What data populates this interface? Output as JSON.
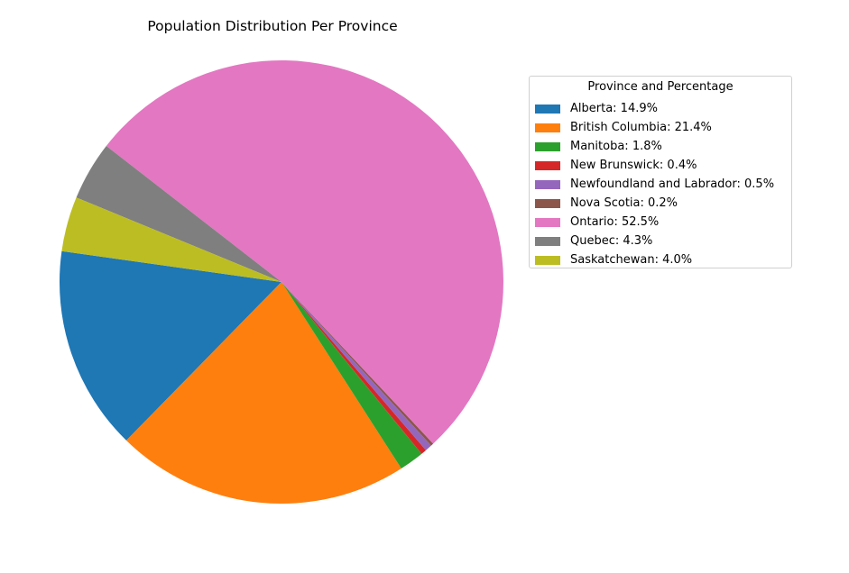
{
  "chart_data": {
    "type": "pie",
    "title": "Population Distribution Per Province",
    "legend_title": "Province and Percentage",
    "legend_placement": "right",
    "start_angle_deg": 172,
    "direction": "counterclockwise",
    "slices": [
      {
        "name": "Alberta",
        "value": 14.9,
        "label": "Alberta: 14.9%",
        "color": "#1f77b4"
      },
      {
        "name": "British Columbia",
        "value": 21.4,
        "label": "British Columbia: 21.4%",
        "color": "#ff7f0e"
      },
      {
        "name": "Manitoba",
        "value": 1.8,
        "label": "Manitoba: 1.8%",
        "color": "#2ca02c"
      },
      {
        "name": "New Brunswick",
        "value": 0.4,
        "label": "New Brunswick: 0.4%",
        "color": "#d62728"
      },
      {
        "name": "Newfoundland and Labrador",
        "value": 0.5,
        "label": "Newfoundland and Labrador: 0.5%",
        "color": "#9467bd"
      },
      {
        "name": "Nova Scotia",
        "value": 0.2,
        "label": "Nova Scotia: 0.2%",
        "color": "#8c564b"
      },
      {
        "name": "Ontario",
        "value": 52.5,
        "label": "Ontario: 52.5%",
        "color": "#e377c2"
      },
      {
        "name": "Quebec",
        "value": 4.3,
        "label": "Quebec: 4.3%",
        "color": "#7f7f7f"
      },
      {
        "name": "Saskatchewan",
        "value": 4.0,
        "label": "Saskatchewan: 4.0%",
        "color": "#bcbd22"
      }
    ]
  }
}
